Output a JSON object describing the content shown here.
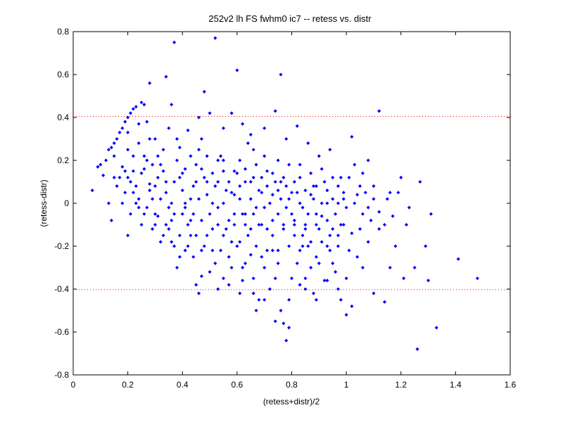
{
  "chart_data": {
    "type": "scatter",
    "title": "252v2 lh FS fwhm0 ic7 -- retess vs. distr",
    "xlabel": "(retess+distr)/2",
    "ylabel": "(retess-distr)",
    "xlim": [
      0,
      1.6
    ],
    "ylim": [
      -0.8,
      0.8
    ],
    "xticks": [
      "0",
      "0.2",
      "0.4",
      "0.6",
      "0.8",
      "1",
      "1.2",
      "1.4",
      "1.6"
    ],
    "yticks": [
      "-0.8",
      "-0.6",
      "-0.4",
      "-0.2",
      "0",
      "0.2",
      "0.4",
      "0.6",
      "0.8"
    ],
    "grid": false,
    "legend": "none",
    "marker_color": "#0000ff",
    "reference_lines": [
      {
        "y": 0.405,
        "color": "#ff0000",
        "style": "dotted"
      },
      {
        "y": -0.403,
        "color": "#ff0000",
        "style": "dotted"
      }
    ],
    "points": [
      [
        0.07,
        0.06
      ],
      [
        0.09,
        0.17
      ],
      [
        0.1,
        0.18
      ],
      [
        0.11,
        0.13
      ],
      [
        0.12,
        0.2
      ],
      [
        0.13,
        0.25
      ],
      [
        0.14,
        0.26
      ],
      [
        0.15,
        0.28
      ],
      [
        0.16,
        0.3
      ],
      [
        0.17,
        0.33
      ],
      [
        0.18,
        0.35
      ],
      [
        0.19,
        0.38
      ],
      [
        0.2,
        0.4
      ],
      [
        0.21,
        0.42
      ],
      [
        0.22,
        0.44
      ],
      [
        0.23,
        0.45
      ],
      [
        0.25,
        0.47
      ],
      [
        0.26,
        0.46
      ],
      [
        0.28,
        0.56
      ],
      [
        0.34,
        0.59
      ],
      [
        0.37,
        0.75
      ],
      [
        0.52,
        0.77
      ],
      [
        0.6,
        0.62
      ],
      [
        0.76,
        0.6
      ],
      [
        0.48,
        0.52
      ],
      [
        0.36,
        0.46
      ],
      [
        0.27,
        0.38
      ],
      [
        0.3,
        0.3
      ],
      [
        0.24,
        0.37
      ],
      [
        0.2,
        0.33
      ],
      [
        0.13,
        0.0
      ],
      [
        0.14,
        -0.08
      ],
      [
        0.15,
        0.12
      ],
      [
        0.16,
        0.08
      ],
      [
        0.18,
        0.17
      ],
      [
        0.19,
        0.15
      ],
      [
        0.2,
        0.12
      ],
      [
        0.21,
        0.1
      ],
      [
        0.22,
        0.05
      ],
      [
        0.23,
        0.0
      ],
      [
        0.24,
        -0.02
      ],
      [
        0.25,
        0.14
      ],
      [
        0.26,
        0.16
      ],
      [
        0.27,
        0.2
      ],
      [
        0.28,
        0.09
      ],
      [
        0.29,
        0.02
      ],
      [
        0.3,
        -0.05
      ],
      [
        0.31,
        0.12
      ],
      [
        0.32,
        0.18
      ],
      [
        0.33,
        0.15
      ],
      [
        0.34,
        0.05
      ],
      [
        0.35,
        -0.02
      ],
      [
        0.36,
        -0.08
      ],
      [
        0.37,
        0.1
      ],
      [
        0.38,
        0.2
      ],
      [
        0.39,
        0.26
      ],
      [
        0.4,
        0.14
      ],
      [
        0.41,
        0.0
      ],
      [
        0.42,
        -0.1
      ],
      [
        0.43,
        -0.15
      ],
      [
        0.44,
        0.08
      ],
      [
        0.45,
        0.18
      ],
      [
        0.46,
        0.25
      ],
      [
        0.47,
        0.3
      ],
      [
        0.48,
        0.12
      ],
      [
        0.49,
        0.04
      ],
      [
        0.5,
        -0.05
      ],
      [
        0.51,
        -0.12
      ],
      [
        0.52,
        0.08
      ],
      [
        0.53,
        0.2
      ],
      [
        0.54,
        0.22
      ],
      [
        0.55,
        0.15
      ],
      [
        0.56,
        0.06
      ],
      [
        0.57,
        -0.08
      ],
      [
        0.58,
        -0.18
      ],
      [
        0.59,
        0.04
      ],
      [
        0.6,
        0.14
      ],
      [
        0.61,
        0.02
      ],
      [
        0.62,
        -0.05
      ],
      [
        0.63,
        0.1
      ],
      [
        0.64,
        0.28
      ],
      [
        0.65,
        0.32
      ],
      [
        0.66,
        0.12
      ],
      [
        0.67,
        -0.02
      ],
      [
        0.68,
        -0.1
      ],
      [
        0.69,
        0.05
      ],
      [
        0.7,
        0.22
      ],
      [
        0.71,
        0.15
      ],
      [
        0.72,
        0.0
      ],
      [
        0.73,
        -0.08
      ],
      [
        0.74,
        0.1
      ],
      [
        0.75,
        0.2
      ],
      [
        0.76,
        0.02
      ],
      [
        0.77,
        -0.12
      ],
      [
        0.78,
        0.08
      ],
      [
        0.79,
        0.18
      ],
      [
        0.8,
        -0.05
      ],
      [
        0.81,
        -0.15
      ],
      [
        0.82,
        0.05
      ],
      [
        0.83,
        0.12
      ],
      [
        0.84,
        -0.02
      ],
      [
        0.85,
        -0.1
      ],
      [
        0.86,
        -0.2
      ],
      [
        0.87,
        0.04
      ],
      [
        0.88,
        0.08
      ],
      [
        0.89,
        -0.05
      ],
      [
        0.9,
        -0.12
      ],
      [
        0.91,
        0.0
      ],
      [
        0.92,
        0.1
      ],
      [
        0.93,
        -0.08
      ],
      [
        0.94,
        -0.15
      ],
      [
        0.95,
        0.02
      ],
      [
        0.96,
        -0.05
      ],
      [
        0.97,
        0.08
      ],
      [
        0.98,
        -0.1
      ],
      [
        0.99,
        0.05
      ],
      [
        1.0,
        -0.02
      ],
      [
        1.01,
        0.12
      ],
      [
        1.02,
        0.31
      ],
      [
        1.03,
        0.18
      ],
      [
        1.05,
        0.08
      ],
      [
        1.06,
        -0.05
      ],
      [
        1.08,
        0.2
      ],
      [
        1.1,
        0.02
      ],
      [
        1.12,
        0.43
      ],
      [
        1.14,
        -0.1
      ],
      [
        1.16,
        0.05
      ],
      [
        1.18,
        -0.2
      ],
      [
        1.2,
        0.12
      ],
      [
        1.22,
        -0.1
      ],
      [
        1.25,
        -0.3
      ],
      [
        1.27,
        0.1
      ],
      [
        1.29,
        -0.2
      ],
      [
        1.31,
        -0.05
      ],
      [
        1.33,
        -0.58
      ],
      [
        1.26,
        -0.68
      ],
      [
        1.41,
        -0.26
      ],
      [
        1.48,
        -0.35
      ],
      [
        1.3,
        -0.36
      ],
      [
        1.21,
        -0.35
      ],
      [
        0.18,
        0.0
      ],
      [
        0.2,
        -0.15
      ],
      [
        0.22,
        0.22
      ],
      [
        0.24,
        0.02
      ],
      [
        0.26,
        -0.05
      ],
      [
        0.28,
        0.06
      ],
      [
        0.3,
        -0.1
      ],
      [
        0.32,
        -0.18
      ],
      [
        0.34,
        -0.1
      ],
      [
        0.36,
        -0.18
      ],
      [
        0.38,
        -0.3
      ],
      [
        0.39,
        -0.25
      ],
      [
        0.4,
        -0.05
      ],
      [
        0.42,
        -0.2
      ],
      [
        0.44,
        -0.25
      ],
      [
        0.45,
        -0.38
      ],
      [
        0.46,
        -0.42
      ],
      [
        0.47,
        -0.34
      ],
      [
        0.48,
        -0.2
      ],
      [
        0.5,
        -0.32
      ],
      [
        0.52,
        -0.28
      ],
      [
        0.53,
        -0.4
      ],
      [
        0.54,
        -0.22
      ],
      [
        0.55,
        -0.35
      ],
      [
        0.57,
        -0.38
      ],
      [
        0.58,
        -0.3
      ],
      [
        0.6,
        -0.2
      ],
      [
        0.61,
        -0.42
      ],
      [
        0.62,
        -0.36
      ],
      [
        0.63,
        -0.28
      ],
      [
        0.64,
        -0.15
      ],
      [
        0.65,
        -0.24
      ],
      [
        0.66,
        -0.35
      ],
      [
        0.67,
        -0.5
      ],
      [
        0.68,
        -0.45
      ],
      [
        0.69,
        -0.25
      ],
      [
        0.7,
        -0.3
      ],
      [
        0.72,
        -0.4
      ],
      [
        0.73,
        -0.22
      ],
      [
        0.74,
        -0.35
      ],
      [
        0.75,
        -0.28
      ],
      [
        0.76,
        -0.5
      ],
      [
        0.77,
        -0.56
      ],
      [
        0.78,
        -0.64
      ],
      [
        0.79,
        -0.45
      ],
      [
        0.8,
        -0.35
      ],
      [
        0.82,
        -0.28
      ],
      [
        0.83,
        -0.38
      ],
      [
        0.84,
        -0.2
      ],
      [
        0.85,
        -0.35
      ],
      [
        0.87,
        -0.3
      ],
      [
        0.88,
        -0.42
      ],
      [
        0.9,
        -0.28
      ],
      [
        0.92,
        -0.36
      ],
      [
        0.94,
        -0.22
      ],
      [
        0.96,
        -0.32
      ],
      [
        0.98,
        -0.45
      ],
      [
        1.0,
        -0.52
      ],
      [
        1.02,
        -0.48
      ],
      [
        1.04,
        -0.25
      ],
      [
        1.06,
        -0.3
      ],
      [
        1.08,
        -0.18
      ],
      [
        1.1,
        -0.42
      ],
      [
        1.12,
        -0.12
      ],
      [
        1.14,
        -0.46
      ],
      [
        1.16,
        -0.3
      ],
      [
        0.55,
        0.35
      ],
      [
        0.58,
        0.42
      ],
      [
        0.62,
        0.37
      ],
      [
        0.66,
        0.25
      ],
      [
        0.7,
        0.35
      ],
      [
        0.74,
        0.43
      ],
      [
        0.78,
        0.3
      ],
      [
        0.82,
        0.36
      ],
      [
        0.86,
        0.28
      ],
      [
        0.9,
        0.22
      ],
      [
        0.94,
        0.25
      ],
      [
        0.98,
        0.12
      ],
      [
        0.5,
        0.42
      ],
      [
        0.46,
        0.4
      ],
      [
        0.42,
        0.34
      ],
      [
        0.38,
        0.3
      ],
      [
        0.35,
        0.35
      ],
      [
        0.33,
        0.25
      ],
      [
        0.31,
        0.22
      ],
      [
        0.29,
        0.18
      ],
      [
        0.4,
        0.06
      ],
      [
        0.41,
        -0.02
      ],
      [
        0.43,
        0.02
      ],
      [
        0.44,
        -0.05
      ],
      [
        0.46,
        0.02
      ],
      [
        0.47,
        -0.08
      ],
      [
        0.49,
        0.1
      ],
      [
        0.51,
        0.0
      ],
      [
        0.53,
        -0.02
      ],
      [
        0.55,
        0.0
      ],
      [
        0.56,
        -0.12
      ],
      [
        0.58,
        0.05
      ],
      [
        0.59,
        -0.05
      ],
      [
        0.61,
        0.08
      ],
      [
        0.63,
        -0.1
      ],
      [
        0.65,
        0.02
      ],
      [
        0.66,
        -0.05
      ],
      [
        0.68,
        0.06
      ],
      [
        0.7,
        -0.02
      ],
      [
        0.71,
        -0.12
      ],
      [
        0.73,
        0.04
      ],
      [
        0.75,
        -0.05
      ],
      [
        0.76,
        0.1
      ],
      [
        0.78,
        -0.02
      ],
      [
        0.8,
        0.05
      ],
      [
        0.81,
        -0.08
      ],
      [
        0.83,
        0.0
      ],
      [
        0.84,
        -0.15
      ],
      [
        0.86,
        -0.05
      ],
      [
        0.88,
        0.02
      ],
      [
        0.89,
        -0.1
      ],
      [
        0.91,
        -0.18
      ],
      [
        0.93,
        0.0
      ],
      [
        0.95,
        -0.12
      ],
      [
        0.97,
        -0.2
      ],
      [
        0.99,
        -0.1
      ],
      [
        1.01,
        -0.22
      ],
      [
        1.03,
        0.0
      ],
      [
        1.05,
        -0.12
      ],
      [
        1.07,
        0.05
      ],
      [
        1.09,
        -0.08
      ],
      [
        0.2,
        0.25
      ],
      [
        0.22,
        0.15
      ],
      [
        0.24,
        0.28
      ],
      [
        0.26,
        0.22
      ],
      [
        0.28,
        0.3
      ],
      [
        0.3,
        0.08
      ],
      [
        0.32,
        0.02
      ],
      [
        0.34,
        0.1
      ],
      [
        0.36,
        0.0
      ],
      [
        0.37,
        -0.05
      ],
      [
        0.39,
        0.12
      ],
      [
        0.41,
        0.16
      ],
      [
        0.43,
        0.22
      ],
      [
        0.45,
        0.1
      ],
      [
        0.47,
        0.16
      ],
      [
        0.49,
        0.22
      ],
      [
        0.51,
        0.14
      ],
      [
        0.53,
        0.1
      ],
      [
        0.55,
        0.2
      ],
      [
        0.57,
        0.1
      ],
      [
        0.59,
        0.15
      ],
      [
        0.61,
        0.2
      ],
      [
        0.63,
        0.16
      ],
      [
        0.65,
        0.1
      ],
      [
        0.67,
        0.18
      ],
      [
        0.69,
        0.12
      ],
      [
        0.71,
        0.08
      ],
      [
        0.73,
        0.14
      ],
      [
        0.75,
        0.06
      ],
      [
        0.77,
        0.12
      ],
      [
        0.79,
        0.02
      ],
      [
        0.81,
        0.1
      ],
      [
        0.83,
        0.18
      ],
      [
        0.85,
        0.06
      ],
      [
        0.87,
        0.14
      ],
      [
        0.89,
        0.08
      ],
      [
        0.91,
        0.16
      ],
      [
        0.93,
        0.06
      ],
      [
        0.95,
        0.12
      ],
      [
        0.97,
        0.0
      ],
      [
        0.99,
        0.02
      ],
      [
        0.15,
        0.22
      ],
      [
        0.17,
        0.12
      ],
      [
        0.19,
        0.05
      ],
      [
        0.21,
        -0.05
      ],
      [
        0.23,
        0.08
      ],
      [
        0.25,
        -0.1
      ],
      [
        0.27,
        -0.02
      ],
      [
        0.29,
        -0.12
      ],
      [
        0.31,
        -0.06
      ],
      [
        0.33,
        -0.15
      ],
      [
        0.35,
        -0.12
      ],
      [
        0.37,
        -0.2
      ],
      [
        0.39,
        -0.15
      ],
      [
        0.41,
        -0.22
      ],
      [
        0.43,
        -0.08
      ],
      [
        0.45,
        -0.15
      ],
      [
        0.47,
        -0.22
      ],
      [
        0.49,
        -0.15
      ],
      [
        0.51,
        -0.22
      ],
      [
        0.53,
        -0.1
      ],
      [
        0.55,
        -0.15
      ],
      [
        0.57,
        -0.25
      ],
      [
        0.59,
        -0.1
      ],
      [
        0.61,
        -0.18
      ],
      [
        0.63,
        -0.05
      ],
      [
        0.65,
        -0.12
      ],
      [
        0.67,
        -0.2
      ],
      [
        0.69,
        -0.1
      ],
      [
        0.71,
        -0.22
      ],
      [
        0.73,
        -0.15
      ],
      [
        0.75,
        -0.22
      ],
      [
        0.77,
        -0.1
      ],
      [
        0.79,
        -0.2
      ],
      [
        0.81,
        -0.1
      ],
      [
        0.83,
        -0.22
      ],
      [
        0.85,
        -0.12
      ],
      [
        0.87,
        -0.18
      ],
      [
        0.89,
        -0.25
      ],
      [
        0.91,
        -0.06
      ],
      [
        0.93,
        -0.2
      ],
      [
        0.95,
        -0.28
      ],
      [
        0.97,
        -0.15
      ],
      [
        1.0,
        -0.35
      ],
      [
        1.02,
        -0.14
      ],
      [
        1.04,
        0.04
      ],
      [
        1.06,
        0.14
      ],
      [
        1.08,
        -0.02
      ],
      [
        1.1,
        0.08
      ],
      [
        1.12,
        -0.04
      ],
      [
        1.15,
        0.02
      ],
      [
        1.17,
        -0.06
      ],
      [
        1.19,
        0.05
      ],
      [
        1.23,
        -0.02
      ],
      [
        0.62,
        -0.3
      ],
      [
        0.66,
        -0.42
      ],
      [
        0.7,
        -0.45
      ],
      [
        0.74,
        -0.55
      ],
      [
        0.79,
        -0.58
      ],
      [
        0.85,
        -0.4
      ],
      [
        0.89,
        -0.45
      ],
      [
        0.93,
        -0.36
      ],
      [
        0.97,
        -0.4
      ]
    ]
  }
}
